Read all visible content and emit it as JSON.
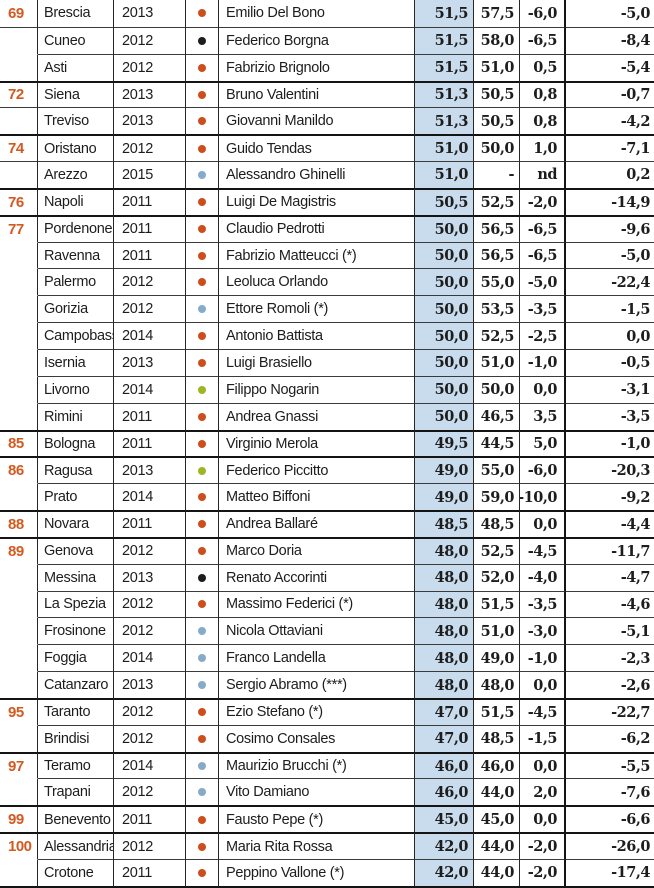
{
  "chart_data": {
    "type": "table",
    "title": "",
    "columns": [
      "rank",
      "city",
      "year",
      "dot_color",
      "mayor",
      "value_highlighted",
      "value_2",
      "value_3",
      "value_4"
    ],
    "colors": {
      "rank_orange": "#d35a1f",
      "dot_orange": "#cc4e1c",
      "dot_black": "#1d1d1d",
      "dot_blue": "#85abc9",
      "dot_green": "#9fb622",
      "highlight_blue": "#c9dced",
      "border_dark": "#141414",
      "border_light": "#3a3a3a",
      "text": "#1d1d1d"
    },
    "rows": [
      {
        "rank": "69",
        "city": "Brescia",
        "year": "2013",
        "dot": "orange",
        "mayor": "Emilio Del Bono",
        "v1": "51,5",
        "v2": "57,5",
        "v3": "-6,0",
        "v4": "-5,0",
        "sep": "none",
        "rank_sep": false
      },
      {
        "rank": "",
        "city": "Cuneo",
        "year": "2012",
        "dot": "black",
        "mayor": "Federico Borgna",
        "v1": "51,5",
        "v2": "58,0",
        "v3": "-6,5",
        "v4": "-8,4",
        "sep": "inner",
        "rank_sep": true
      },
      {
        "rank": "",
        "city": "Asti",
        "year": "2012",
        "dot": "orange",
        "mayor": "Fabrizio Brignolo",
        "v1": "51,5",
        "v2": "51,0",
        "v3": "0,5",
        "v4": "-5,4",
        "sep": "inner",
        "rank_sep": false
      },
      {
        "rank": "72",
        "city": "Siena",
        "year": "2013",
        "dot": "orange",
        "mayor": "Bruno Valentini",
        "v1": "51,3",
        "v2": "50,5",
        "v3": "0,8",
        "v4": "-0,7",
        "sep": "group",
        "rank_sep": false
      },
      {
        "rank": "",
        "city": "Treviso",
        "year": "2013",
        "dot": "orange",
        "mayor": "Giovanni Manildo",
        "v1": "51,3",
        "v2": "50,5",
        "v3": "0,8",
        "v4": "-4,2",
        "sep": "inner",
        "rank_sep": true
      },
      {
        "rank": "74",
        "city": "Oristano",
        "year": "2012",
        "dot": "orange",
        "mayor": "Guido Tendas",
        "v1": "51,0",
        "v2": "50,0",
        "v3": "1,0",
        "v4": "-7,1",
        "sep": "group",
        "rank_sep": false
      },
      {
        "rank": "",
        "city": "Arezzo",
        "year": "2015",
        "dot": "blue",
        "mayor": "Alessandro Ghinelli",
        "v1": "51,0",
        "v2": "-",
        "v3": "nd",
        "v4": "0,2",
        "sep": "inner",
        "rank_sep": true
      },
      {
        "rank": "76",
        "city": "Napoli",
        "year": "2011",
        "dot": "orange",
        "mayor": "Luigi De Magistris",
        "v1": "50,5",
        "v2": "52,5",
        "v3": "-2,0",
        "v4": "-14,9",
        "sep": "group",
        "rank_sep": false
      },
      {
        "rank": "77",
        "city": "Pordenone",
        "year": "2011",
        "dot": "orange",
        "mayor": "Claudio Pedrotti",
        "v1": "50,0",
        "v2": "56,5",
        "v3": "-6,5",
        "v4": "-9,6",
        "sep": "group",
        "rank_sep": false
      },
      {
        "rank": "",
        "city": "Ravenna",
        "year": "2011",
        "dot": "orange",
        "mayor": "Fabrizio Matteucci (*)",
        "v1": "50,0",
        "v2": "56,5",
        "v3": "-6,5",
        "v4": "-5,0",
        "sep": "inner",
        "rank_sep": false
      },
      {
        "rank": "",
        "city": "Palermo",
        "year": "2012",
        "dot": "orange",
        "mayor": "Leoluca Orlando",
        "v1": "50,0",
        "v2": "55,0",
        "v3": "-5,0",
        "v4": "-22,4",
        "sep": "inner",
        "rank_sep": false
      },
      {
        "rank": "",
        "city": "Gorizia",
        "year": "2012",
        "dot": "blue",
        "mayor": "Ettore Romoli (*)",
        "v1": "50,0",
        "v2": "53,5",
        "v3": "-3,5",
        "v4": "-1,5",
        "sep": "inner",
        "rank_sep": false
      },
      {
        "rank": "",
        "city": "Campobasso",
        "year": "2014",
        "dot": "orange",
        "mayor": "Antonio Battista",
        "v1": "50,0",
        "v2": "52,5",
        "v3": "-2,5",
        "v4": "0,0",
        "sep": "inner",
        "rank_sep": false
      },
      {
        "rank": "",
        "city": "Isernia",
        "year": "2013",
        "dot": "orange",
        "mayor": "Luigi Brasiello",
        "v1": "50,0",
        "v2": "51,0",
        "v3": "-1,0",
        "v4": "-0,5",
        "sep": "inner",
        "rank_sep": false
      },
      {
        "rank": "",
        "city": "Livorno",
        "year": "2014",
        "dot": "green",
        "mayor": "Filippo Nogarin",
        "v1": "50,0",
        "v2": "50,0",
        "v3": "0,0",
        "v4": "-3,1",
        "sep": "inner",
        "rank_sep": false
      },
      {
        "rank": "",
        "city": "Rimini",
        "year": "2011",
        "dot": "orange",
        "mayor": "Andrea Gnassi",
        "v1": "50,0",
        "v2": "46,5",
        "v3": "3,5",
        "v4": "-3,5",
        "sep": "inner",
        "rank_sep": false
      },
      {
        "rank": "85",
        "city": "Bologna",
        "year": "2011",
        "dot": "orange",
        "mayor": "Virginio Merola",
        "v1": "49,5",
        "v2": "44,5",
        "v3": "5,0",
        "v4": "-1,0",
        "sep": "group",
        "rank_sep": false
      },
      {
        "rank": "86",
        "city": "Ragusa",
        "year": "2013",
        "dot": "green",
        "mayor": "Federico Piccitto",
        "v1": "49,0",
        "v2": "55,0",
        "v3": "-6,0",
        "v4": "-20,3",
        "sep": "group",
        "rank_sep": false
      },
      {
        "rank": "",
        "city": "Prato",
        "year": "2014",
        "dot": "orange",
        "mayor": "Matteo Biffoni",
        "v1": "49,0",
        "v2": "59,0",
        "v3": "-10,0",
        "v4": "-9,2",
        "sep": "inner",
        "rank_sep": false
      },
      {
        "rank": "88",
        "city": "Novara",
        "year": "2011",
        "dot": "orange",
        "mayor": "Andrea Ballaré",
        "v1": "48,5",
        "v2": "48,5",
        "v3": "0,0",
        "v4": "-4,4",
        "sep": "group",
        "rank_sep": false
      },
      {
        "rank": "89",
        "city": "Genova",
        "year": "2012",
        "dot": "orange",
        "mayor": "Marco Doria",
        "v1": "48,0",
        "v2": "52,5",
        "v3": "-4,5",
        "v4": "-11,7",
        "sep": "group",
        "rank_sep": false
      },
      {
        "rank": "",
        "city": "Messina",
        "year": "2013",
        "dot": "black",
        "mayor": "Renato Accorinti",
        "v1": "48,0",
        "v2": "52,0",
        "v3": "-4,0",
        "v4": "-4,7",
        "sep": "inner",
        "rank_sep": false
      },
      {
        "rank": "",
        "city": "La Spezia",
        "year": "2012",
        "dot": "orange",
        "mayor": "Massimo Federici (*)",
        "v1": "48,0",
        "v2": "51,5",
        "v3": "-3,5",
        "v4": "-4,6",
        "sep": "inner",
        "rank_sep": false
      },
      {
        "rank": "",
        "city": "Frosinone",
        "year": "2012",
        "dot": "blue",
        "mayor": "Nicola Ottaviani",
        "v1": "48,0",
        "v2": "51,0",
        "v3": "-3,0",
        "v4": "-5,1",
        "sep": "inner",
        "rank_sep": false
      },
      {
        "rank": "",
        "city": "Foggia",
        "year": "2014",
        "dot": "blue",
        "mayor": "Franco Landella",
        "v1": "48,0",
        "v2": "49,0",
        "v3": "-1,0",
        "v4": "-2,3",
        "sep": "inner",
        "rank_sep": false
      },
      {
        "rank": "",
        "city": "Catanzaro",
        "year": "2013",
        "dot": "blue",
        "mayor": "Sergio Abramo (***)",
        "v1": "48,0",
        "v2": "48,0",
        "v3": "0,0",
        "v4": "-2,6",
        "sep": "inner",
        "rank_sep": false
      },
      {
        "rank": "95",
        "city": "Taranto",
        "year": "2012",
        "dot": "orange",
        "mayor": "Ezio Stefano (*)",
        "v1": "47,0",
        "v2": "51,5",
        "v3": "-4,5",
        "v4": "-22,7",
        "sep": "group",
        "rank_sep": false
      },
      {
        "rank": "",
        "city": "Brindisi",
        "year": "2012",
        "dot": "orange",
        "mayor": "Cosimo Consales",
        "v1": "47,0",
        "v2": "48,5",
        "v3": "-1,5",
        "v4": "-6,2",
        "sep": "inner",
        "rank_sep": false
      },
      {
        "rank": "97",
        "city": "Teramo",
        "year": "2014",
        "dot": "blue",
        "mayor": "Maurizio Brucchi (*)",
        "v1": "46,0",
        "v2": "46,0",
        "v3": "0,0",
        "v4": "-5,5",
        "sep": "group",
        "rank_sep": false
      },
      {
        "rank": "",
        "city": "Trapani",
        "year": "2012",
        "dot": "blue",
        "mayor": "Vito Damiano",
        "v1": "46,0",
        "v2": "44,0",
        "v3": "2,0",
        "v4": "-7,6",
        "sep": "inner",
        "rank_sep": false
      },
      {
        "rank": "99",
        "city": "Benevento",
        "year": "2011",
        "dot": "orange",
        "mayor": "Fausto Pepe (*)",
        "v1": "45,0",
        "v2": "45,0",
        "v3": "0,0",
        "v4": "-6,6",
        "sep": "group",
        "rank_sep": false
      },
      {
        "rank": "100",
        "city": "Alessandria",
        "year": "2012",
        "dot": "orange",
        "mayor": "Maria Rita Rossa",
        "v1": "42,0",
        "v2": "44,0",
        "v3": "-2,0",
        "v4": "-26,0",
        "sep": "group",
        "rank_sep": false
      },
      {
        "rank": "",
        "city": "Crotone",
        "year": "2011",
        "dot": "orange",
        "mayor": "Peppino Vallone (*)",
        "v1": "42,0",
        "v2": "44,0",
        "v3": "-2,0",
        "v4": "-17,4",
        "sep": "inner",
        "rank_sep": false
      }
    ]
  }
}
